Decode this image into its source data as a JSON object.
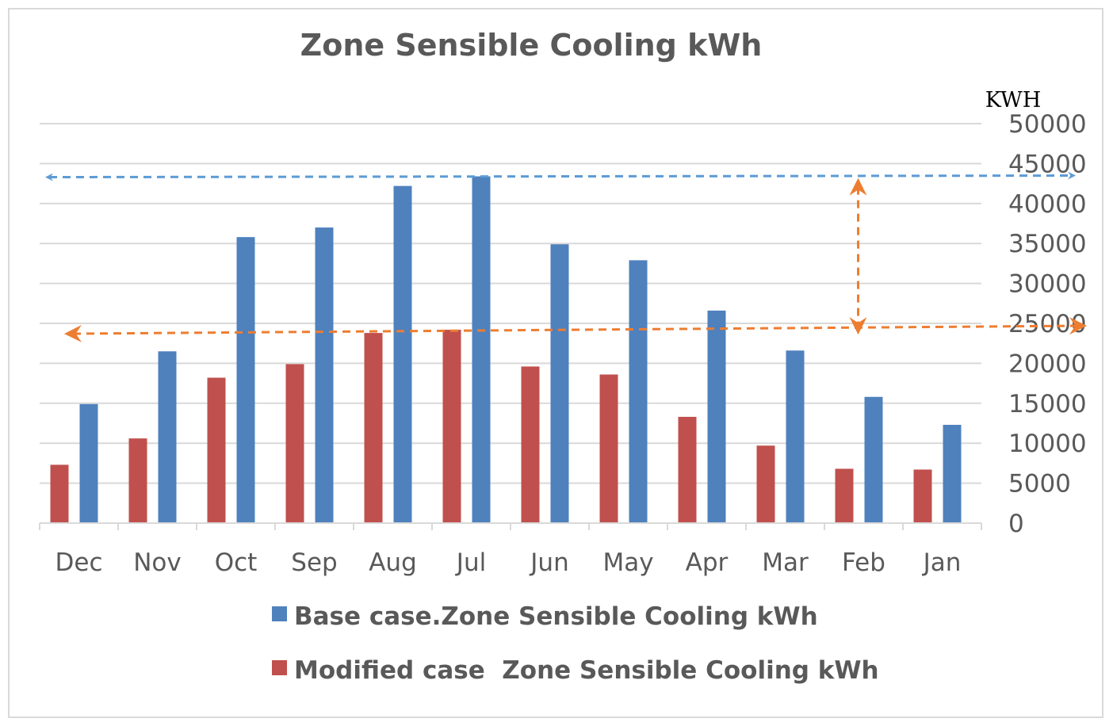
{
  "chart_data": {
    "type": "bar",
    "title": "Zone Sensible Cooling kWh",
    "ylabel": "KWH",
    "xlabel": "",
    "ylim": [
      0,
      50000
    ],
    "yticks": [
      0,
      5000,
      10000,
      15000,
      20000,
      25000,
      30000,
      35000,
      40000,
      45000,
      50000
    ],
    "categories": [
      "Dec",
      "Nov",
      "Oct",
      "Sep",
      "Aug",
      "Jul",
      "Jun",
      "May",
      "Apr",
      "Mar",
      "Feb",
      "Jan"
    ],
    "series": [
      {
        "name": "Modified case  Zone Sensible Cooling kWh",
        "color": "#c0504d",
        "values": [
          7300,
          10600,
          18200,
          19900,
          23800,
          24200,
          19600,
          18600,
          13300,
          9700,
          6800,
          6700
        ]
      },
      {
        "name": "Base case.Zone Sensible Cooling kWh",
        "color": "#4f81bd",
        "values": [
          14900,
          21500,
          35800,
          37000,
          42200,
          43400,
          34900,
          32900,
          26600,
          21600,
          15800,
          12300
        ]
      }
    ],
    "legend_order": [
      1,
      0
    ],
    "grid": true,
    "legend_position": "bottom",
    "annotations": [
      {
        "type": "dashed-double-arrow",
        "orientation": "horizontal",
        "value": 43400,
        "color": "#5b9bd5"
      },
      {
        "type": "dashed-double-arrow",
        "orientation": "horizontal",
        "value": 24200,
        "color": "#ed7d31"
      },
      {
        "type": "dashed-double-arrow",
        "orientation": "vertical",
        "from": 24200,
        "to": 41500,
        "category": "Feb",
        "color": "#ed7d31"
      }
    ]
  }
}
